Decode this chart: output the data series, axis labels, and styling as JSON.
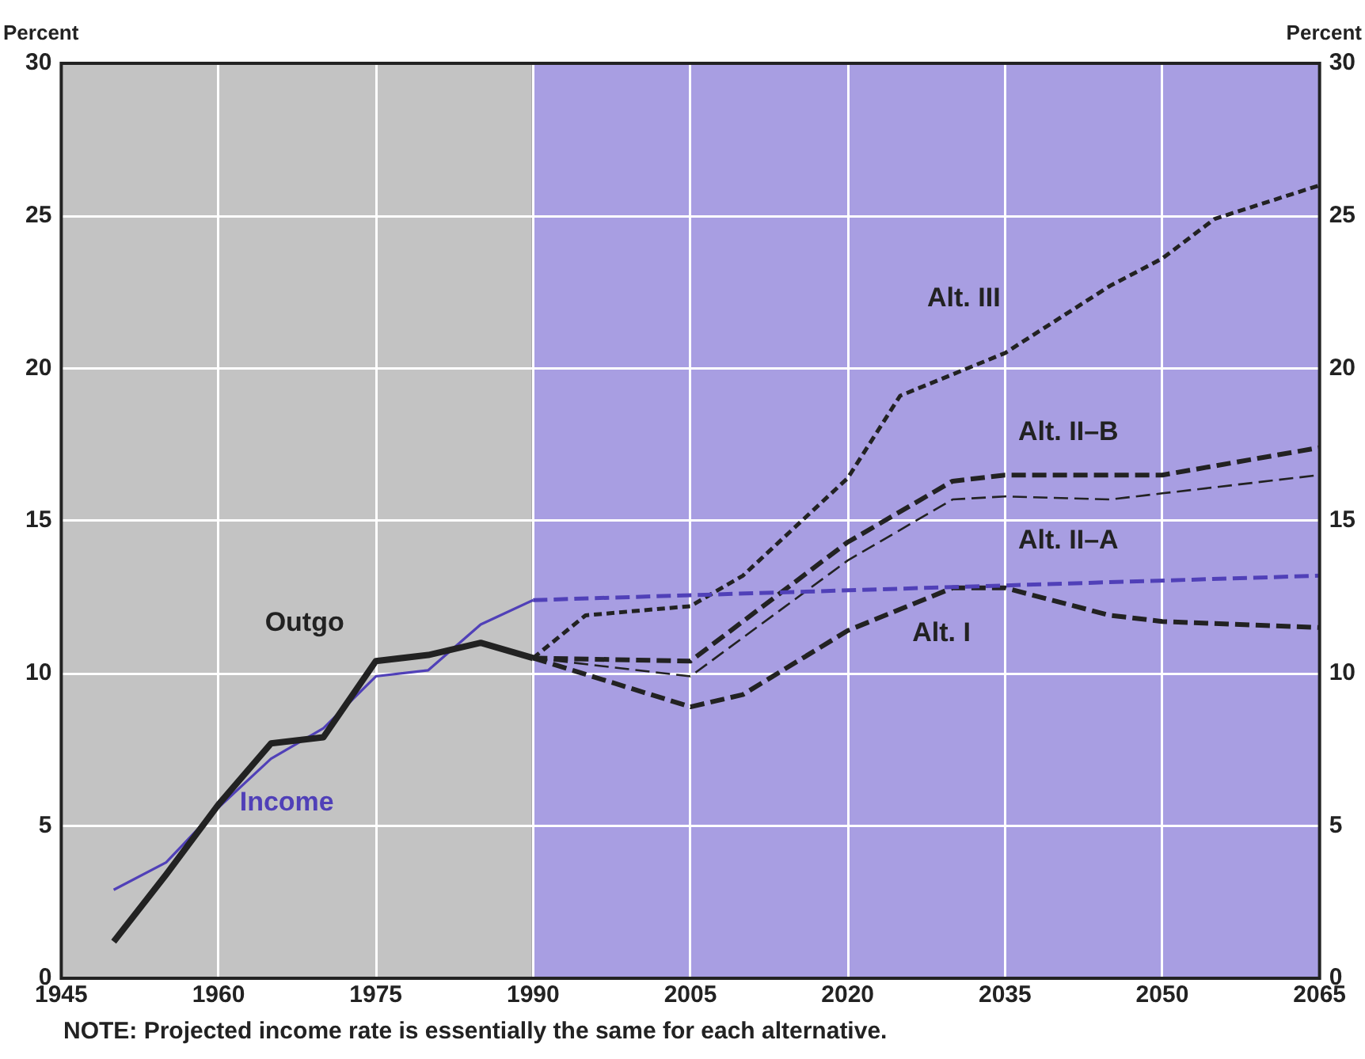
{
  "chart_data": {
    "type": "line",
    "ylabel": "Percent",
    "y2label": "Percent",
    "xlim": [
      1945,
      2065
    ],
    "xticks": [
      1945,
      1960,
      1975,
      1990,
      2005,
      2020,
      2035,
      2050,
      2065
    ],
    "ylim": [
      0,
      30
    ],
    "yticks": [
      0,
      5,
      10,
      15,
      20,
      25,
      30
    ],
    "y2lim": [
      0,
      30
    ],
    "y2ticks": [
      0,
      5,
      10,
      15,
      20,
      25,
      30
    ],
    "grid": true,
    "legend": false,
    "marker": "none",
    "bands": [
      {
        "axis": "x",
        "from": 1945,
        "to": 1990,
        "color": "#c3c3c3"
      },
      {
        "axis": "x",
        "from": 1990,
        "to": 2065,
        "color": "#a89ee2"
      }
    ],
    "ref_lines": [
      {
        "axis": "x",
        "value": 1990,
        "color": "#222222"
      }
    ],
    "series": [
      {
        "name": "Outgo",
        "color": "#222222",
        "line_style": "solid",
        "x": [
          1950,
          1955,
          1960,
          1965,
          1970,
          1975,
          1980,
          1985,
          1990
        ],
        "values": [
          1.2,
          3.4,
          5.7,
          7.7,
          7.9,
          10.4,
          10.6,
          11.0,
          10.5
        ]
      },
      {
        "name": "Income",
        "color": "#5040b8",
        "line_style": "solid",
        "x": [
          1950,
          1955,
          1960,
          1965,
          1970,
          1975,
          1980,
          1985,
          1990
        ],
        "values": [
          2.9,
          3.8,
          5.6,
          7.2,
          8.2,
          9.9,
          10.1,
          11.6,
          12.4
        ]
      },
      {
        "color": "#5040b8",
        "line_style": "dashed",
        "x": [
          1990,
          2065
        ],
        "values": [
          12.4,
          13.2
        ]
      },
      {
        "name": "Alt. III",
        "color": "#222222",
        "line_style": "dotted",
        "x": [
          1990,
          1995,
          2005,
          2010,
          2020,
          2025,
          2035,
          2045,
          2050,
          2055,
          2065
        ],
        "values": [
          10.5,
          11.9,
          12.2,
          13.2,
          16.4,
          19.1,
          20.5,
          22.7,
          23.6,
          24.9,
          26.0
        ]
      },
      {
        "name": "Alt. II–B",
        "color": "#222222",
        "line_style": "dashed",
        "x": [
          1990,
          2005,
          2020,
          2030,
          2035,
          2050,
          2065
        ],
        "values": [
          10.5,
          10.4,
          14.3,
          16.3,
          16.5,
          16.5,
          17.4
        ]
      },
      {
        "name": "Alt. II–A",
        "color": "#222222",
        "line_style": "dashed",
        "x": [
          1990,
          2005,
          2020,
          2030,
          2035,
          2045,
          2050,
          2065
        ],
        "values": [
          10.5,
          9.9,
          13.7,
          15.7,
          15.8,
          15.7,
          15.9,
          16.5
        ]
      },
      {
        "name": "Alt. I",
        "color": "#222222",
        "line_style": "dashed",
        "x": [
          1990,
          2005,
          2010,
          2020,
          2030,
          2035,
          2045,
          2050,
          2065
        ],
        "values": [
          10.5,
          8.9,
          9.3,
          11.4,
          12.8,
          12.8,
          11.9,
          11.7,
          11.5
        ]
      }
    ],
    "annotations": [
      "NOTE: Projected income rate is essentially the same for each alternative."
    ]
  }
}
